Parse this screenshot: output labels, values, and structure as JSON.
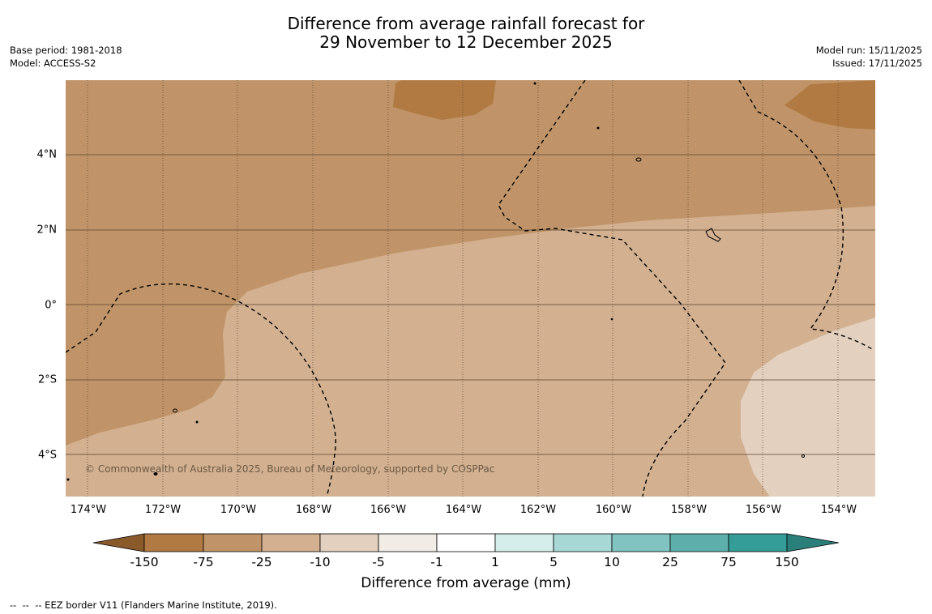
{
  "title": "Difference from average rainfall forecast for\n29 November to 12 December 2025",
  "meta_left": {
    "base_period": "Base period: 1981-2018",
    "model": "Model: ACCESS-S2"
  },
  "meta_right": {
    "model_run": "Model run: 15/11/2025",
    "issued": "Issued: 17/11/2025"
  },
  "map": {
    "latitude_labels": [
      "4°N",
      "2°N",
      "0°",
      "2°S",
      "4°S"
    ],
    "longitude_labels": [
      "174°W",
      "172°W",
      "170°W",
      "168°W",
      "166°W",
      "164°W",
      "162°W",
      "160°W",
      "158°W",
      "156°W",
      "154°W"
    ],
    "copyright": "© Commonwealth of Australia 2025, Bureau of Meteorology, supported by COSPPac"
  },
  "colorbar": {
    "title": "Difference from average (mm)",
    "tick_labels": [
      "-150",
      "-75",
      "-25",
      "-10",
      "-5",
      "-1",
      "1",
      "5",
      "10",
      "25",
      "75",
      "150"
    ],
    "colors": [
      "#8b5a2b",
      "#b07a42",
      "#c09468",
      "#d2b090",
      "#e3d0be",
      "#f1ece6",
      "#ffffff",
      "#d6eeeb",
      "#a8d8d6",
      "#80c3c0",
      "#5dafab",
      "#359d98",
      "#2a7f7b"
    ]
  },
  "footer_note": "--  --  -- EEZ border V11 (Flanders Marine Institute, 2019)."
}
